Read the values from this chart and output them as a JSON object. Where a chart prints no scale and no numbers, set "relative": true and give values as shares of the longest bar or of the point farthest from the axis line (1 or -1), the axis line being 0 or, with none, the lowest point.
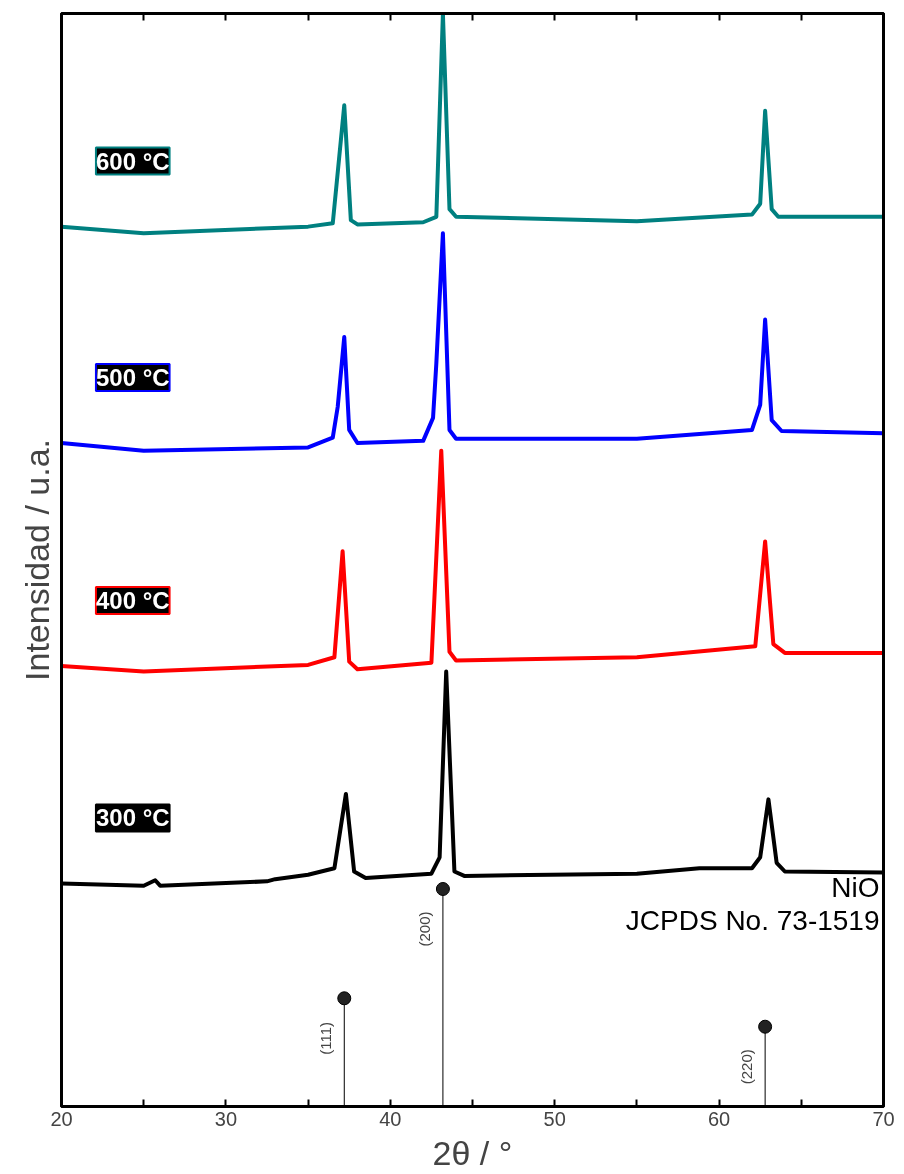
{
  "chart_data": {
    "type": "line",
    "relative": true,
    "xlabel": "2θ / °",
    "ylabel": "Intensidad / u.a.",
    "xlim": [
      20,
      70
    ],
    "xticks": [
      20,
      {
        "value": 25,
        "label": null
      },
      30,
      {
        "value": 35,
        "label": null
      },
      40,
      {
        "value": 45,
        "label": null
      },
      50,
      {
        "value": 55,
        "label": null
      },
      60,
      {
        "value": 65,
        "label": null
      },
      70
    ],
    "grid": false,
    "line_style": "solid",
    "series": [
      {
        "name": "300 °C",
        "color": "#000000",
        "x": [
          20,
          25,
          25.7,
          26,
          32.5,
          33,
          35,
          36.6,
          37.3,
          37.8,
          38.5,
          42.5,
          43,
          43.4,
          43.9,
          44.5,
          55,
          58.8,
          62,
          62.5,
          63.0,
          63.5,
          64,
          70
        ],
        "values": [
          0.204,
          0.202,
          0.207,
          0.202,
          0.206,
          0.208,
          0.212,
          0.218,
          0.286,
          0.215,
          0.209,
          0.213,
          0.228,
          0.398,
          0.215,
          0.211,
          0.213,
          0.218,
          0.218,
          0.228,
          0.281,
          0.223,
          0.215,
          0.214
        ]
      },
      {
        "name": "400 °C",
        "color": "#ff0000",
        "x": [
          20,
          25,
          35,
          36.6,
          37.1,
          37.5,
          38,
          42.5,
          43.1,
          43.6,
          44,
          55,
          62.2,
          62.8,
          63.3,
          64,
          70
        ],
        "values": [
          0.403,
          0.398,
          0.404,
          0.411,
          0.508,
          0.407,
          0.4,
          0.406,
          0.6,
          0.416,
          0.408,
          0.411,
          0.421,
          0.517,
          0.423,
          0.415,
          0.415
        ]
      },
      {
        "name": "500 °C",
        "color": "#0000ff",
        "x": [
          20,
          25,
          35,
          36.5,
          36.8,
          37.2,
          37.5,
          38,
          42,
          42.6,
          42.8,
          43.2,
          43.6,
          44,
          55,
          62,
          62.5,
          62.8,
          63.2,
          63.8,
          70
        ],
        "values": [
          0.607,
          0.6,
          0.603,
          0.612,
          0.64,
          0.704,
          0.619,
          0.607,
          0.609,
          0.63,
          0.68,
          0.799,
          0.619,
          0.611,
          0.611,
          0.619,
          0.642,
          0.72,
          0.628,
          0.618,
          0.616
        ]
      },
      {
        "name": "600 °C",
        "color": "#008080",
        "x": [
          20,
          25,
          35,
          36.5,
          37.2,
          37.6,
          38,
          42,
          42.8,
          43.2,
          43.6,
          44,
          55,
          62,
          62.5,
          62.8,
          63.2,
          63.6,
          70
        ],
        "values": [
          0.805,
          0.799,
          0.805,
          0.808,
          0.916,
          0.811,
          0.807,
          0.809,
          0.814,
          1.0,
          0.821,
          0.814,
          0.81,
          0.816,
          0.826,
          0.911,
          0.821,
          0.814,
          0.814
        ]
      },
      {
        "type": "lollipop",
        "color": "#000000",
        "marker": "circle",
        "x": [
          37.2,
          43.2,
          62.8
        ],
        "values": [
          0.099,
          0.199,
          0.073
        ]
      }
    ],
    "annotations": [
      "NiO",
      "JCPDS No. 73-1519",
      {
        "text": "(111)",
        "x": 37.2,
        "y": 0.099
      },
      {
        "text": "(200)",
        "x": 43.2,
        "y": 0.199
      },
      {
        "text": "(220)",
        "x": 62.8,
        "y": 0.073
      }
    ]
  }
}
